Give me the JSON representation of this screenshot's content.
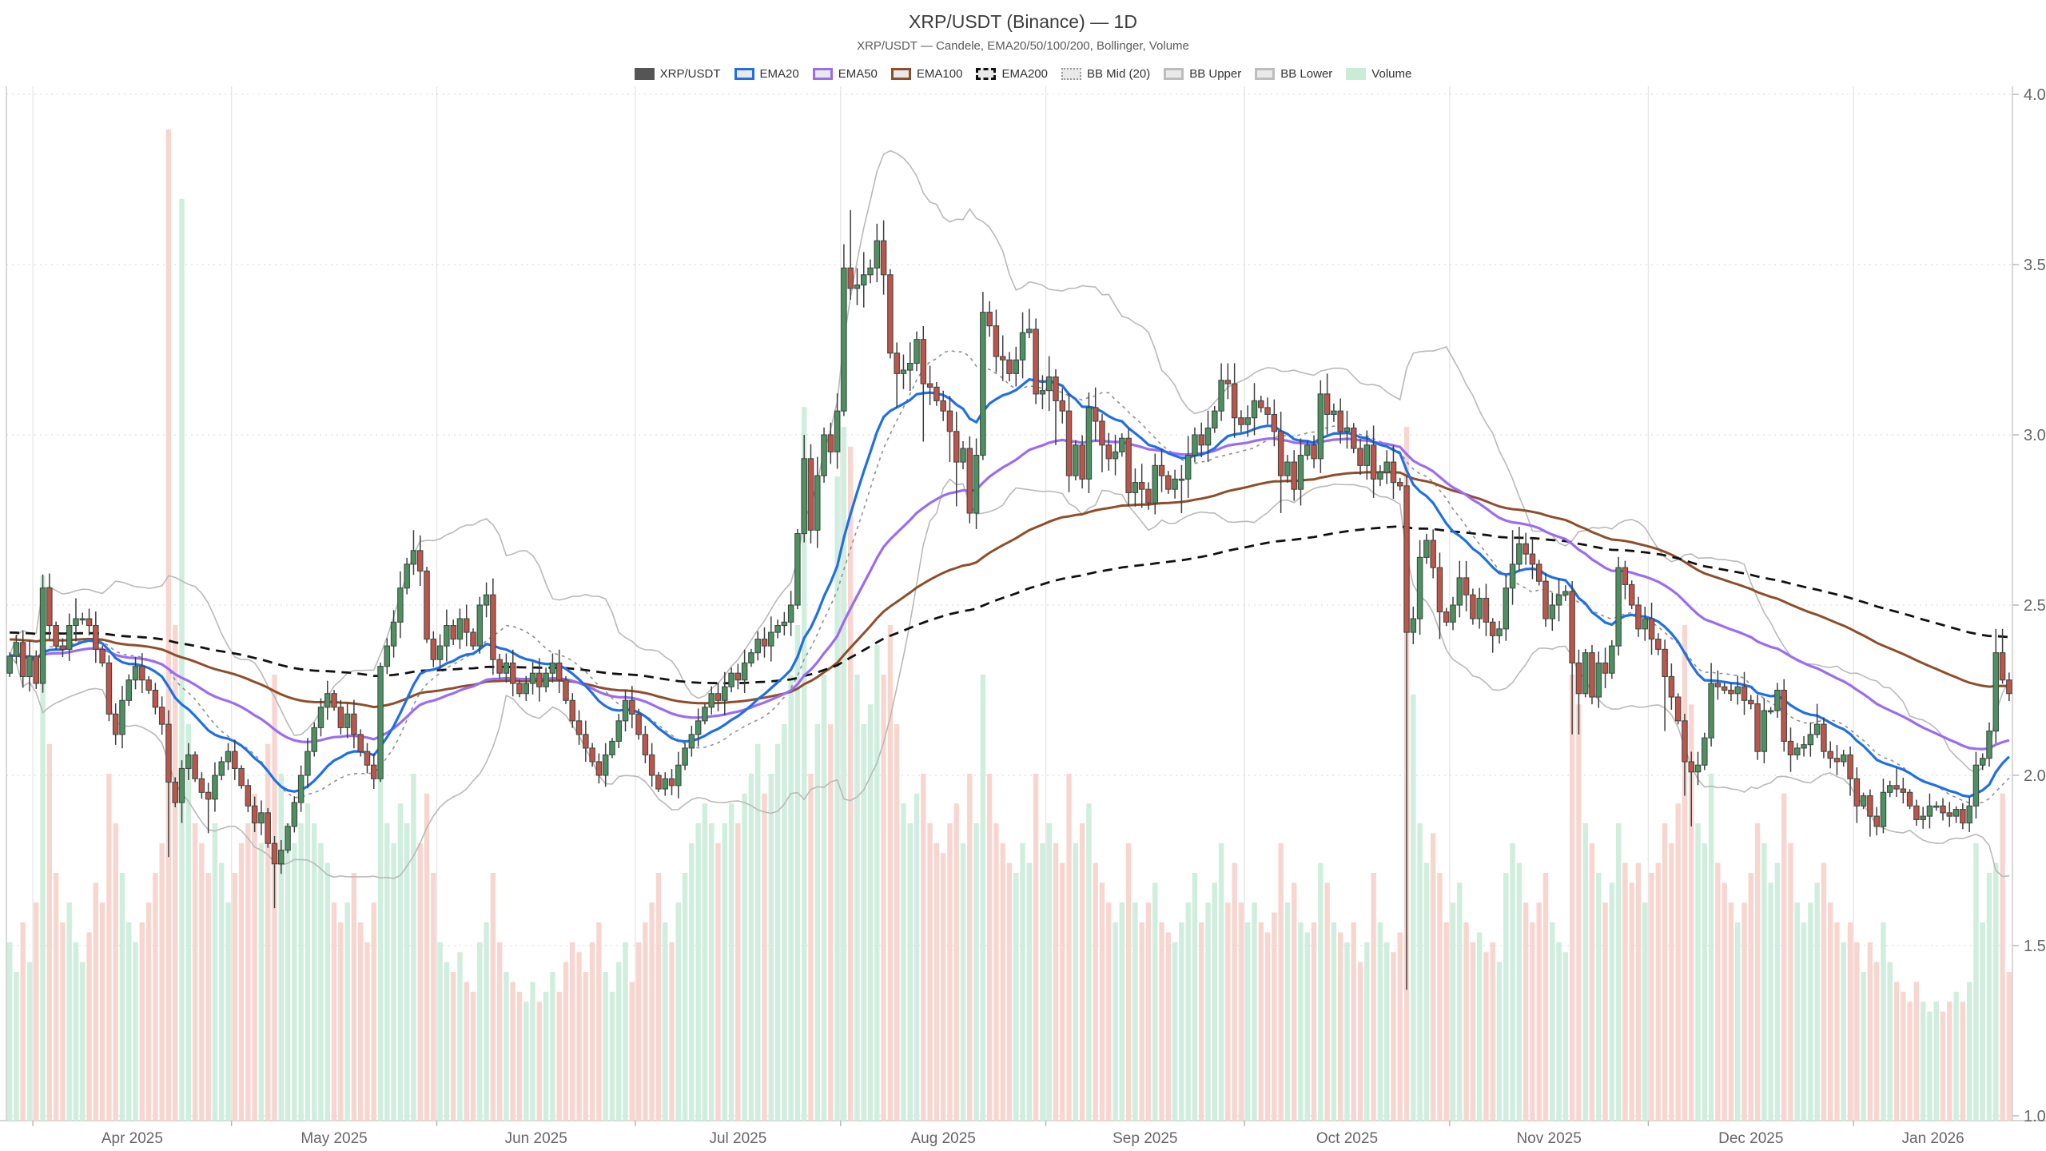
{
  "title": "XRP/USDT (Binance) — 1D",
  "subtitle": "XRP/USDT — Candele, EMA20/50/100/200, Bollinger, Volume",
  "legend": [
    {
      "label": "XRP/USDT",
      "swatch": "fill",
      "color": "#555555"
    },
    {
      "label": "EMA20",
      "swatch": "border",
      "color": "#1f6fe8"
    },
    {
      "label": "EMA50",
      "swatch": "border",
      "color": "#9a6cf5"
    },
    {
      "label": "EMA100",
      "swatch": "border",
      "color": "#8f4e2a"
    },
    {
      "label": "EMA200",
      "swatch": "dashed",
      "color": "#111111"
    },
    {
      "label": "BB Mid (20)",
      "swatch": "dotted",
      "color": "#999999"
    },
    {
      "label": "BB Upper",
      "swatch": "border",
      "color": "#bdbdbd"
    },
    {
      "label": "BB Lower",
      "swatch": "border",
      "color": "#bdbdbd"
    },
    {
      "label": "Volume",
      "swatch": "fill",
      "color": "#c9ecd6"
    }
  ],
  "axes": {
    "y_ticks": [
      "4.0",
      "3.5",
      "3.0",
      "2.5",
      "2.0",
      "1.5",
      "1.0"
    ],
    "y_min": 1.0,
    "y_max": 4.0,
    "x_labels": [
      {
        "label": "Apr 2025",
        "start": 4
      },
      {
        "label": "May 2025",
        "start": 34
      },
      {
        "label": "Jun 2025",
        "start": 65
      },
      {
        "label": "Jul 2025",
        "start": 95
      },
      {
        "label": "Aug 2025",
        "start": 126
      },
      {
        "label": "Sep 2025",
        "start": 157
      },
      {
        "label": "Oct 2025",
        "start": 187
      },
      {
        "label": "Nov 2025",
        "start": 218
      },
      {
        "label": "Dec 2025",
        "start": 248
      },
      {
        "label": "Jan 2026",
        "start": 279
      }
    ]
  },
  "chart_data": {
    "type": "candlestick",
    "symbol": "XRP/USDT",
    "interval": "1D",
    "start_date": "2025-03-28",
    "first_open": 2.3,
    "open_rule": "previous_close",
    "closes": [
      2.35,
      2.39,
      2.29,
      2.35,
      2.27,
      2.55,
      2.44,
      2.38,
      2.37,
      2.44,
      2.46,
      2.46,
      2.44,
      2.37,
      2.33,
      2.18,
      2.12,
      2.22,
      2.28,
      2.32,
      2.28,
      2.25,
      2.2,
      2.15,
      1.98,
      1.92,
      2.02,
      2.06,
      1.99,
      1.95,
      1.93,
      2.0,
      2.04,
      2.07,
      2.02,
      1.97,
      1.91,
      1.86,
      1.89,
      1.8,
      1.74,
      1.78,
      1.85,
      1.92,
      2.0,
      2.07,
      2.14,
      2.2,
      2.24,
      2.2,
      2.14,
      2.18,
      2.12,
      2.07,
      2.03,
      1.99,
      2.32,
      2.38,
      2.45,
      2.55,
      2.62,
      2.66,
      2.6,
      2.4,
      2.34,
      2.38,
      2.44,
      2.4,
      2.46,
      2.42,
      2.38,
      2.5,
      2.53,
      2.34,
      2.3,
      2.33,
      2.27,
      2.24,
      2.27,
      2.3,
      2.26,
      2.3,
      2.33,
      2.28,
      2.22,
      2.16,
      2.12,
      2.08,
      2.04,
      2.0,
      2.06,
      2.1,
      2.16,
      2.22,
      2.18,
      2.12,
      2.06,
      2.0,
      1.96,
      1.99,
      1.97,
      2.03,
      2.08,
      2.12,
      2.16,
      2.2,
      2.24,
      2.22,
      2.26,
      2.3,
      2.28,
      2.33,
      2.36,
      2.4,
      2.38,
      2.42,
      2.44,
      2.45,
      2.5,
      2.71,
      2.93,
      2.72,
      2.88,
      3.0,
      2.95,
      3.07,
      3.49,
      3.43,
      3.44,
      3.47,
      3.49,
      3.57,
      3.47,
      3.24,
      3.18,
      3.19,
      3.21,
      3.28,
      3.15,
      3.14,
      3.1,
      3.07,
      3.01,
      2.92,
      2.96,
      2.77,
      2.94,
      3.36,
      3.32,
      3.23,
      3.22,
      3.18,
      3.22,
      3.3,
      3.31,
      3.12,
      3.13,
      3.17,
      3.1,
      3.07,
      2.88,
      2.97,
      2.87,
      3.08,
      3.04,
      2.97,
      2.93,
      2.95,
      2.99,
      2.83,
      2.86,
      2.84,
      2.8,
      2.91,
      2.88,
      2.84,
      2.87,
      2.87,
      2.94,
      3.0,
      2.97,
      3.02,
      3.07,
      3.16,
      3.15,
      3.05,
      3.03,
      3.05,
      3.1,
      3.08,
      3.06,
      3.01,
      2.88,
      2.92,
      2.84,
      2.94,
      2.97,
      2.93,
      3.12,
      3.06,
      3.07,
      3.01,
      3.02,
      2.96,
      2.91,
      2.97,
      2.87,
      2.89,
      2.92,
      2.86,
      2.85,
      2.42,
      2.46,
      2.64,
      2.69,
      2.61,
      2.48,
      2.45,
      2.5,
      2.58,
      2.53,
      2.46,
      2.52,
      2.45,
      2.41,
      2.43,
      2.55,
      2.62,
      2.68,
      2.65,
      2.62,
      2.57,
      2.46,
      2.5,
      2.53,
      2.54,
      2.33,
      2.24,
      2.36,
      2.23,
      2.33,
      2.3,
      2.38,
      2.61,
      2.56,
      2.5,
      2.43,
      2.46,
      2.4,
      2.37,
      2.29,
      2.23,
      2.16,
      2.04,
      2.01,
      2.03,
      2.11,
      2.27,
      2.26,
      2.25,
      2.24,
      2.26,
      2.22,
      2.21,
      2.07,
      2.19,
      2.19,
      2.25,
      2.1,
      2.06,
      2.08,
      2.09,
      2.12,
      2.15,
      2.07,
      2.05,
      2.04,
      2.06,
      1.99,
      1.91,
      1.94,
      1.88,
      1.85,
      1.95,
      1.97,
      1.96,
      1.95,
      1.91,
      1.87,
      1.88,
      1.91,
      1.91,
      1.89,
      1.88,
      1.9,
      1.86,
      1.91,
      2.03,
      2.05,
      2.13,
      2.36,
      2.28,
      2.24
    ],
    "volumes": [
      0.18,
      0.15,
      0.2,
      0.16,
      0.22,
      0.55,
      0.38,
      0.25,
      0.2,
      0.22,
      0.18,
      0.16,
      0.19,
      0.24,
      0.22,
      0.35,
      0.3,
      0.25,
      0.2,
      0.18,
      0.2,
      0.22,
      0.25,
      0.28,
      1.0,
      0.5,
      0.93,
      0.4,
      0.3,
      0.28,
      0.25,
      0.3,
      0.26,
      0.22,
      0.25,
      0.28,
      0.3,
      0.33,
      0.28,
      0.38,
      0.45,
      0.35,
      0.3,
      0.28,
      0.3,
      0.32,
      0.3,
      0.28,
      0.26,
      0.22,
      0.2,
      0.22,
      0.25,
      0.2,
      0.18,
      0.22,
      0.38,
      0.3,
      0.28,
      0.32,
      0.3,
      0.35,
      0.28,
      0.33,
      0.25,
      0.18,
      0.16,
      0.15,
      0.17,
      0.14,
      0.13,
      0.18,
      0.2,
      0.25,
      0.18,
      0.15,
      0.14,
      0.13,
      0.12,
      0.14,
      0.12,
      0.13,
      0.15,
      0.13,
      0.16,
      0.18,
      0.17,
      0.15,
      0.18,
      0.2,
      0.15,
      0.13,
      0.16,
      0.18,
      0.14,
      0.18,
      0.2,
      0.22,
      0.25,
      0.2,
      0.18,
      0.22,
      0.25,
      0.28,
      0.3,
      0.32,
      0.3,
      0.28,
      0.3,
      0.32,
      0.3,
      0.33,
      0.35,
      0.38,
      0.33,
      0.35,
      0.38,
      0.4,
      0.45,
      0.5,
      0.72,
      0.35,
      0.4,
      0.45,
      0.4,
      0.65,
      0.7,
      0.68,
      0.45,
      0.4,
      0.42,
      0.48,
      0.45,
      0.5,
      0.4,
      0.32,
      0.3,
      0.33,
      0.35,
      0.3,
      0.28,
      0.27,
      0.3,
      0.32,
      0.28,
      0.35,
      0.3,
      0.45,
      0.35,
      0.3,
      0.28,
      0.26,
      0.25,
      0.28,
      0.26,
      0.35,
      0.28,
      0.3,
      0.28,
      0.26,
      0.35,
      0.28,
      0.3,
      0.32,
      0.26,
      0.24,
      0.22,
      0.2,
      0.22,
      0.28,
      0.22,
      0.2,
      0.22,
      0.24,
      0.2,
      0.19,
      0.18,
      0.2,
      0.22,
      0.25,
      0.2,
      0.22,
      0.24,
      0.28,
      0.22,
      0.26,
      0.22,
      0.2,
      0.22,
      0.2,
      0.19,
      0.21,
      0.28,
      0.22,
      0.24,
      0.2,
      0.19,
      0.2,
      0.26,
      0.24,
      0.2,
      0.19,
      0.18,
      0.2,
      0.16,
      0.18,
      0.25,
      0.2,
      0.18,
      0.17,
      0.19,
      0.7,
      0.43,
      0.3,
      0.26,
      0.29,
      0.25,
      0.2,
      0.22,
      0.24,
      0.2,
      0.18,
      0.19,
      0.17,
      0.18,
      0.16,
      0.25,
      0.28,
      0.26,
      0.22,
      0.2,
      0.22,
      0.25,
      0.2,
      0.18,
      0.17,
      0.45,
      0.42,
      0.3,
      0.28,
      0.25,
      0.22,
      0.24,
      0.3,
      0.26,
      0.24,
      0.26,
      0.22,
      0.25,
      0.26,
      0.3,
      0.28,
      0.32,
      0.5,
      0.42,
      0.3,
      0.28,
      0.35,
      0.26,
      0.24,
      0.22,
      0.2,
      0.22,
      0.25,
      0.3,
      0.28,
      0.24,
      0.26,
      0.33,
      0.28,
      0.22,
      0.2,
      0.22,
      0.24,
      0.26,
      0.22,
      0.2,
      0.18,
      0.2,
      0.18,
      0.15,
      0.18,
      0.16,
      0.2,
      0.16,
      0.14,
      0.13,
      0.12,
      0.14,
      0.12,
      0.11,
      0.12,
      0.11,
      0.12,
      0.13,
      0.12,
      0.14,
      0.28,
      0.2,
      0.25,
      0.26,
      0.33,
      0.15
    ],
    "default_wick_frac": 0.012,
    "wick_high_overrides": {
      "5": 2.59,
      "10": 2.52,
      "61": 2.72,
      "120": 3.0,
      "126": 3.56,
      "127": 3.66,
      "131": 3.62,
      "147": 3.42,
      "153": 3.36,
      "154": 3.37,
      "183": 3.21,
      "184": 3.21,
      "198": 3.16,
      "199": 3.18,
      "219": 2.63,
      "227": 2.72,
      "228": 2.73,
      "244": 2.63,
      "257": 2.33,
      "273": 2.21,
      "283": 1.99,
      "285": 2.02,
      "300": 2.43,
      "301": 2.43
    },
    "wick_low_overrides": {
      "24": 1.76,
      "26": 1.86,
      "30": 1.83,
      "40": 1.61,
      "55": 1.96,
      "99": 1.94,
      "134": 3.08,
      "138": 2.98,
      "142": 2.92,
      "143": 2.79,
      "145": 2.74,
      "158": 2.97,
      "165": 2.89,
      "169": 2.79,
      "177": 2.77,
      "192": 2.77,
      "211": 1.37,
      "216": 2.4,
      "224": 2.36,
      "236": 2.12,
      "237": 2.12,
      "250": 2.13,
      "253": 1.94,
      "254": 1.85,
      "269": 2.01,
      "278": 1.94,
      "279": 1.86,
      "281": 1.82,
      "283": 1.83,
      "294": 1.86
    },
    "indicators": {
      "ema_periods": [
        20,
        50,
        100,
        200
      ],
      "ema_seeds": {
        "100": 2.4,
        "200": 2.42
      },
      "bollinger": {
        "period": 20,
        "stdev_mult": 2
      }
    },
    "colors": {
      "candle_up": "#4e9160",
      "candle_down": "#c1544a",
      "candle_border": "#3d4a44",
      "wick": "#3f3f3f",
      "volume_up": "#cfeedd",
      "volume_down": "#f8d6d0",
      "ema20": "#1f6fe8",
      "ema50": "#9a6cf5",
      "ema100": "#8f4e2a",
      "ema200": "#111111",
      "bb_band": "#b9b9b9",
      "bb_mid": "#8f8f8f",
      "grid": "#dddddd",
      "month_grid": "#e7e7e7",
      "axis_line": "#c8c8c8",
      "axis_text": "#666666"
    }
  }
}
